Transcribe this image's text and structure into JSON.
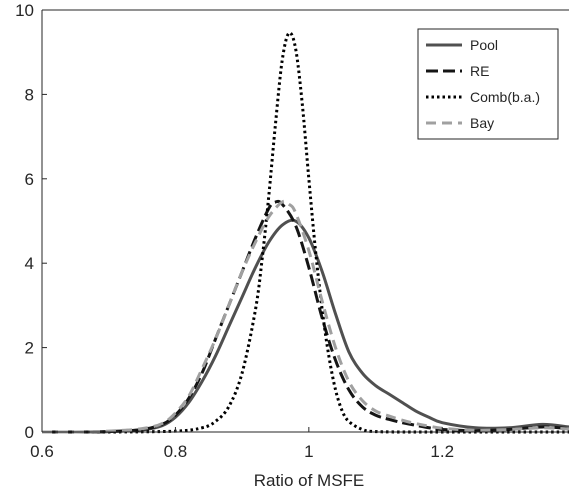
{
  "chart_data": {
    "type": "line",
    "title": "",
    "xlabel": "Ratio of MSFE",
    "ylabel": "",
    "xlim": [
      0.6,
      1.39
    ],
    "ylim": [
      0,
      10
    ],
    "xticks": [
      0.6,
      0.8,
      1,
      1.2
    ],
    "xtick_labels": [
      "0.6",
      "0.8",
      "1",
      "1.2"
    ],
    "yticks": [
      0,
      2,
      4,
      6,
      8,
      10
    ],
    "ytick_labels": [
      "0",
      "2",
      "4",
      "6",
      "8",
      "10"
    ],
    "grid": false,
    "legend_position": "top-right",
    "series": [
      {
        "name": "Pool",
        "color": "#505050",
        "dash": "solid",
        "x": [
          0.6,
          0.65,
          0.7,
          0.75,
          0.78,
          0.8,
          0.82,
          0.84,
          0.86,
          0.88,
          0.9,
          0.92,
          0.94,
          0.96,
          0.98,
          1.0,
          1.02,
          1.04,
          1.06,
          1.08,
          1.1,
          1.12,
          1.14,
          1.16,
          1.18,
          1.2,
          1.25,
          1.3,
          1.35,
          1.39
        ],
        "y": [
          0,
          0,
          0.01,
          0.05,
          0.15,
          0.35,
          0.7,
          1.2,
          1.8,
          2.5,
          3.2,
          3.9,
          4.5,
          4.9,
          5.0,
          4.6,
          3.8,
          2.8,
          1.9,
          1.4,
          1.1,
          0.9,
          0.7,
          0.5,
          0.35,
          0.22,
          0.1,
          0.1,
          0.18,
          0.12
        ]
      },
      {
        "name": "RE",
        "color": "#151515",
        "dash": "longdash",
        "x": [
          0.6,
          0.65,
          0.7,
          0.75,
          0.78,
          0.8,
          0.82,
          0.84,
          0.86,
          0.88,
          0.9,
          0.92,
          0.94,
          0.95,
          0.96,
          0.98,
          1.0,
          1.02,
          1.04,
          1.06,
          1.08,
          1.1,
          1.12,
          1.14,
          1.16,
          1.18,
          1.2,
          1.25,
          1.3,
          1.35,
          1.39
        ],
        "y": [
          0,
          0,
          0.01,
          0.06,
          0.18,
          0.4,
          0.8,
          1.4,
          2.2,
          3.0,
          3.8,
          4.6,
          5.3,
          5.45,
          5.4,
          4.9,
          3.9,
          2.7,
          1.7,
          1.0,
          0.6,
          0.4,
          0.3,
          0.22,
          0.16,
          0.1,
          0.06,
          0.03,
          0.06,
          0.12,
          0.08
        ]
      },
      {
        "name": "Comb(b.a.)",
        "color": "#000000",
        "dash": "dotted",
        "x": [
          0.6,
          0.7,
          0.8,
          0.84,
          0.86,
          0.88,
          0.9,
          0.92,
          0.93,
          0.94,
          0.95,
          0.96,
          0.97,
          0.98,
          0.99,
          1.0,
          1.01,
          1.02,
          1.03,
          1.04,
          1.05,
          1.06,
          1.08,
          1.1,
          1.15,
          1.2,
          1.3,
          1.39
        ],
        "y": [
          0,
          0,
          0.02,
          0.1,
          0.25,
          0.6,
          1.4,
          2.9,
          4.1,
          5.6,
          7.3,
          8.8,
          9.45,
          9.1,
          7.8,
          6.0,
          4.3,
          2.9,
          1.8,
          1.0,
          0.5,
          0.25,
          0.06,
          0.01,
          0,
          0,
          0,
          0
        ]
      },
      {
        "name": "Bay",
        "color": "#a0a0a0",
        "dash": "dashed",
        "x": [
          0.6,
          0.65,
          0.7,
          0.75,
          0.78,
          0.8,
          0.82,
          0.84,
          0.86,
          0.88,
          0.9,
          0.92,
          0.94,
          0.96,
          0.97,
          0.98,
          1.0,
          1.02,
          1.04,
          1.06,
          1.08,
          1.1,
          1.12,
          1.14,
          1.16,
          1.18,
          1.2,
          1.25,
          1.3,
          1.35,
          1.39
        ],
        "y": [
          0,
          0,
          0.02,
          0.08,
          0.2,
          0.45,
          0.85,
          1.5,
          2.2,
          3.0,
          3.8,
          4.5,
          5.1,
          5.45,
          5.4,
          5.2,
          4.3,
          3.1,
          2.0,
          1.2,
          0.75,
          0.5,
          0.38,
          0.28,
          0.2,
          0.14,
          0.09,
          0.04,
          0.06,
          0.1,
          0.07
        ]
      }
    ]
  }
}
